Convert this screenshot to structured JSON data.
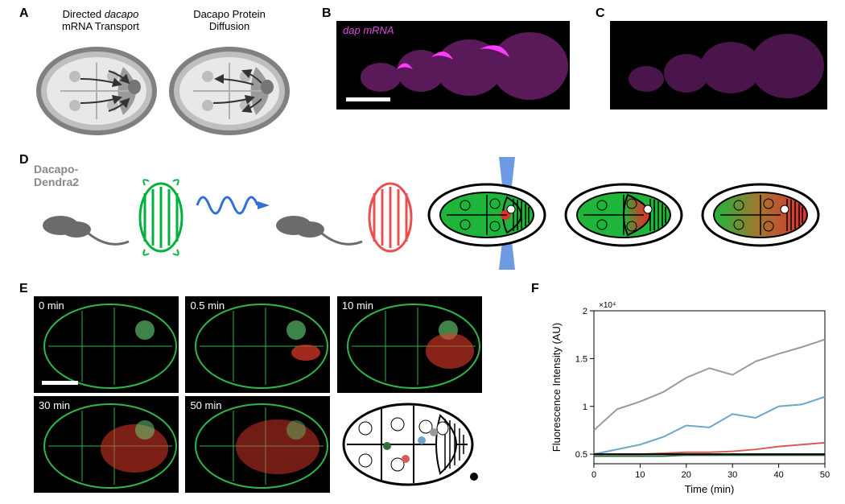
{
  "labels": {
    "A": "A",
    "B": "B",
    "C": "C",
    "D": "D",
    "E": "E",
    "F": "F"
  },
  "panelA": {
    "title_left_line1": "Directed",
    "title_left_italic": "dacapo",
    "title_left_line2": "mRNA Transport",
    "title_right_line1": "Dacapo Protein",
    "title_right_line2": "Diffusion",
    "shell_fill": "#bfbfbf",
    "shell_stroke": "#808080",
    "inner_fill": "#e8e8e8",
    "oocyte_fill": "#9a9a9a",
    "arrow_color": "#333333",
    "nucleus_fill": "#bdbdbd"
  },
  "panelB": {
    "label_text": "dap",
    "label_suffix": " mRNA",
    "label_color": "#d84cd8",
    "bg": "#000000",
    "blob_color": "#ff3cff",
    "haze_color": "#5a1a5a",
    "scalebar_color": "#ffffff"
  },
  "panelC": {
    "bg": "#000000",
    "haze_color": "#49154b"
  },
  "panelD": {
    "text": "Dacapo-",
    "text2": "Dendra2",
    "barrel_green": "#00b140",
    "barrel_red": "#e85050",
    "protein_gray": "#6b6b6b",
    "laser_blue": "#2f6fd6",
    "egg_green": "#1fb53b",
    "egg_red": "#e03030",
    "egg_outline": "#000000"
  },
  "panelE": {
    "timepoints": [
      "0 min",
      "0.5 min",
      "10 min",
      "30 min",
      "50 min"
    ],
    "bg": "#000000",
    "green": "#2fb54b",
    "red": "#e23a2a",
    "scalebar_color": "#ffffff",
    "dot_colors": {
      "gray": "#9a9a9a",
      "blue": "#6ea6c9",
      "red": "#d65b55",
      "green": "#2f6e3a",
      "black": "#000000"
    }
  },
  "panelF": {
    "type": "line",
    "xlabel": "Time (min)",
    "ylabel": "Fluorescence Intensity (AU)",
    "xlim": [
      0,
      50
    ],
    "ylim": [
      0.4,
      2.0
    ],
    "xticks": [
      0,
      10,
      20,
      30,
      40,
      50
    ],
    "yticks": [
      0.5,
      1,
      1.5,
      2
    ],
    "y_exp_label": "×10⁴",
    "axis_color": "#000000",
    "bg": "#ffffff",
    "line_width": 2,
    "series": [
      {
        "name": "gray",
        "color": "#9a9a9a",
        "x": [
          0,
          5,
          10,
          15,
          20,
          25,
          30,
          35,
          40,
          45,
          50
        ],
        "y": [
          0.75,
          0.97,
          1.05,
          1.15,
          1.3,
          1.4,
          1.33,
          1.47,
          1.55,
          1.62,
          1.7
        ]
      },
      {
        "name": "blue",
        "color": "#6ea6c9",
        "x": [
          0,
          5,
          10,
          15,
          20,
          25,
          30,
          35,
          40,
          45,
          50
        ],
        "y": [
          0.5,
          0.55,
          0.6,
          0.68,
          0.8,
          0.78,
          0.92,
          0.88,
          1.0,
          1.02,
          1.1
        ]
      },
      {
        "name": "red",
        "color": "#d65b55",
        "x": [
          0,
          5,
          10,
          15,
          20,
          25,
          30,
          35,
          40,
          45,
          50
        ],
        "y": [
          0.5,
          0.5,
          0.5,
          0.51,
          0.52,
          0.52,
          0.53,
          0.55,
          0.58,
          0.6,
          0.62
        ]
      },
      {
        "name": "green",
        "color": "#2f6e3a",
        "x": [
          0,
          5,
          10,
          15,
          20,
          25,
          30,
          35,
          40,
          45,
          50
        ],
        "y": [
          0.48,
          0.48,
          0.48,
          0.48,
          0.49,
          0.49,
          0.49,
          0.49,
          0.49,
          0.49,
          0.49
        ]
      },
      {
        "name": "black",
        "color": "#000000",
        "x": [
          0,
          5,
          10,
          15,
          20,
          25,
          30,
          35,
          40,
          45,
          50
        ],
        "y": [
          0.5,
          0.5,
          0.5,
          0.5,
          0.5,
          0.5,
          0.5,
          0.5,
          0.5,
          0.5,
          0.5
        ]
      }
    ]
  }
}
